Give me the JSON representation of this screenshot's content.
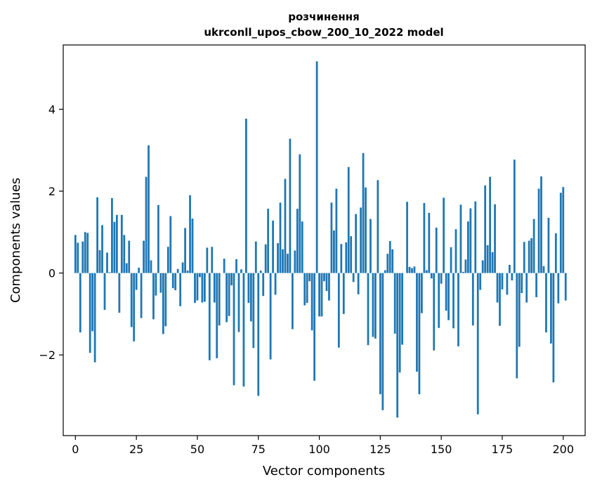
{
  "chart_data": {
    "type": "bar",
    "title": "розчинення",
    "subtitle": "ukrconll_upos_cbow_200_10_2022 model",
    "xlabel": "Vector components",
    "ylabel": "Components values",
    "xlim": [
      -5,
      209
    ],
    "ylim": [
      -3.97,
      5.57
    ],
    "xticks": [
      0,
      25,
      50,
      75,
      100,
      125,
      150,
      175,
      200
    ],
    "yticks": [
      -2,
      0,
      2,
      4
    ],
    "ytick_labels": [
      "−2",
      "0",
      "2",
      "4"
    ],
    "bar_color": "#1f77b4",
    "grid": false,
    "legend": false,
    "values": [
      0.93,
      0.74,
      -1.45,
      0.77,
      1.0,
      0.98,
      -1.95,
      -1.42,
      -2.18,
      1.85,
      0.56,
      1.17,
      -0.9,
      0.5,
      0.02,
      1.83,
      1.25,
      1.42,
      -0.97,
      1.42,
      0.93,
      0.24,
      0.79,
      -1.32,
      -1.67,
      -0.41,
      0.13,
      -1.1,
      0.79,
      2.35,
      3.12,
      0.31,
      -1.13,
      -0.55,
      1.66,
      -0.48,
      -1.49,
      -1.3,
      0.64,
      1.39,
      -0.37,
      -0.42,
      0.1,
      -0.81,
      0.26,
      1.1,
      0.06,
      1.9,
      1.33,
      -0.73,
      -0.67,
      -0.1,
      -0.72,
      -0.7,
      0.62,
      -2.13,
      0.64,
      -0.72,
      -2.08,
      -1.28,
      0.0,
      0.35,
      -1.2,
      -1.05,
      -0.3,
      -2.74,
      0.34,
      -1.44,
      0.09,
      -2.77,
      3.77,
      -0.73,
      -1.18,
      -1.83,
      0.77,
      -3.0,
      0.06,
      -0.56,
      0.7,
      1.57,
      -2.11,
      1.28,
      -0.53,
      0.73,
      1.72,
      0.58,
      2.3,
      0.47,
      3.28,
      -1.37,
      0.55,
      1.57,
      2.9,
      1.26,
      -0.79,
      -0.73,
      -0.2,
      -1.4,
      -2.63,
      5.17,
      -1.06,
      -1.06,
      -0.2,
      -0.44,
      -0.67,
      1.72,
      1.04,
      2.06,
      -1.82,
      0.71,
      -1.0,
      0.75,
      2.59,
      0.9,
      -0.22,
      1.44,
      -0.52,
      1.6,
      2.93,
      2.09,
      -1.76,
      1.32,
      -1.56,
      -1.6,
      2.27,
      -2.96,
      -3.35,
      0.07,
      0.47,
      0.78,
      0.58,
      -1.48,
      -3.53,
      -2.43,
      -1.75,
      0.0,
      1.74,
      0.15,
      0.12,
      0.16,
      -2.41,
      -2.96,
      -0.98,
      1.71,
      0.07,
      1.47,
      -0.13,
      -1.89,
      1.11,
      -1.34,
      -0.26,
      1.84,
      -0.92,
      -1.15,
      0.63,
      -1.35,
      1.07,
      -1.79,
      1.67,
      0.03,
      0.33,
      1.26,
      1.58,
      -1.28,
      1.75,
      -3.45,
      -0.41,
      0.31,
      2.14,
      0.68,
      2.35,
      0.51,
      1.68,
      -0.72,
      -1.29,
      -0.4,
      0.0,
      -0.53,
      0.2,
      -0.18,
      2.77,
      -2.57,
      -1.8,
      -0.49,
      0.76,
      -0.72,
      0.79,
      0.85,
      1.32,
      -0.59,
      2.06,
      2.36,
      0.17,
      -1.45,
      1.35,
      -1.72,
      -2.67,
      0.97,
      -0.74,
      1.96,
      2.1,
      -0.67
    ]
  }
}
